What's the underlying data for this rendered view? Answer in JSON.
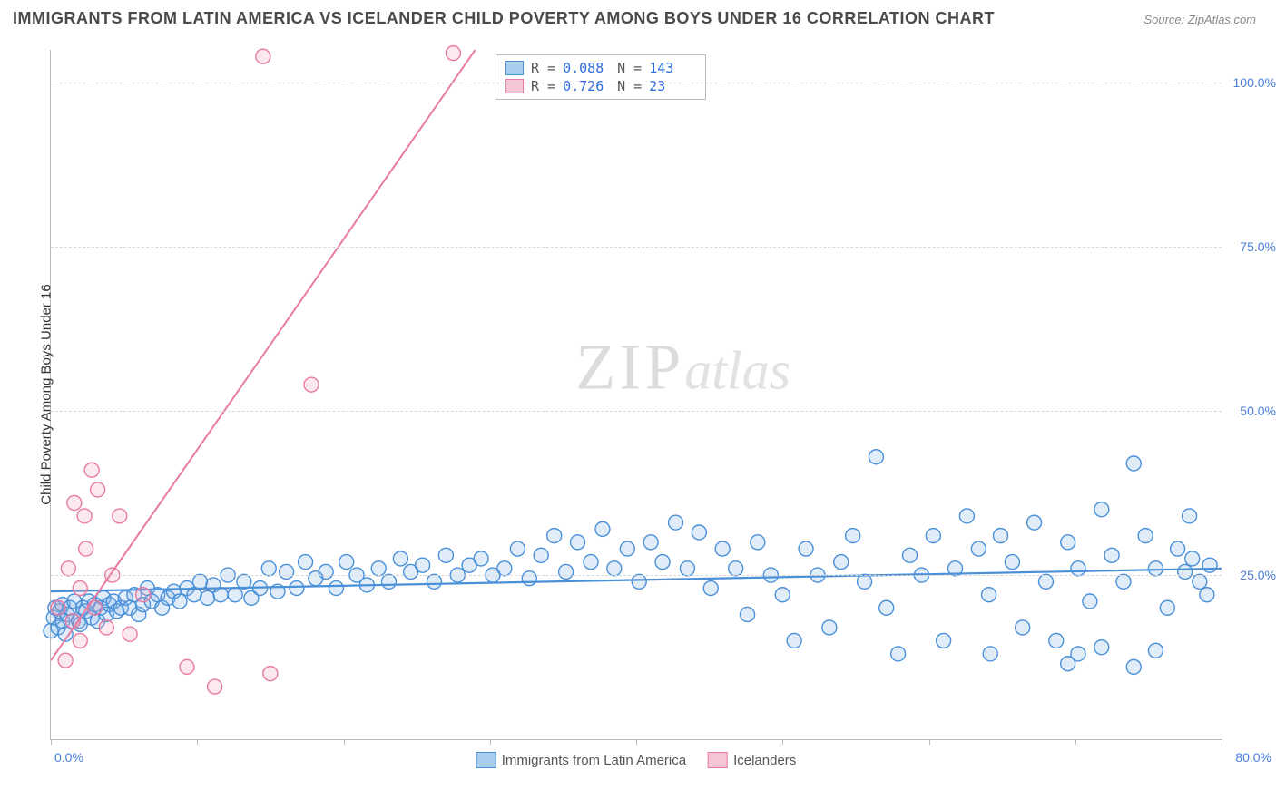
{
  "title": "IMMIGRANTS FROM LATIN AMERICA VS ICELANDER CHILD POVERTY AMONG BOYS UNDER 16 CORRELATION CHART",
  "source": "Source: ZipAtlas.com",
  "y_axis_label": "Child Poverty Among Boys Under 16",
  "watermark_a": "ZIP",
  "watermark_b": "atlas",
  "chart": {
    "type": "scatter",
    "xlim": [
      0,
      80
    ],
    "ylim": [
      0,
      105
    ],
    "x_tick_positions": [
      0,
      10,
      20,
      30,
      40,
      50,
      60,
      70,
      80
    ],
    "y_ticks": [
      {
        "v": 25,
        "label": "25.0%"
      },
      {
        "v": 50,
        "label": "50.0%"
      },
      {
        "v": 75,
        "label": "75.0%"
      },
      {
        "v": 100,
        "label": "100.0%"
      }
    ],
    "x_label_min": "0.0%",
    "x_label_max": "80.0%",
    "background_color": "#ffffff",
    "grid_color": "#d8d8d8",
    "marker_radius": 8,
    "marker_fill_opacity": 0.24,
    "marker_stroke_width": 1.4,
    "series": [
      {
        "id": "latin",
        "label": "Immigrants from Latin America",
        "color_stroke": "#4a90d9",
        "color_fill": "#7fb5e8",
        "R": "0.088",
        "N": "143",
        "trend": {
          "x1": 0,
          "y1": 22.5,
          "x2": 80,
          "y2": 26.0,
          "width": 2.2
        },
        "points": [
          [
            0.0,
            16.5
          ],
          [
            0.2,
            18.5
          ],
          [
            0.3,
            20.0
          ],
          [
            0.5,
            17.0
          ],
          [
            0.6,
            19.5
          ],
          [
            0.8,
            18.0
          ],
          [
            0.8,
            20.5
          ],
          [
            1.0,
            16.0
          ],
          [
            1.1,
            19.0
          ],
          [
            1.3,
            20.0
          ],
          [
            1.5,
            18.0
          ],
          [
            1.6,
            21.0
          ],
          [
            1.9,
            18.0
          ],
          [
            2.0,
            17.5
          ],
          [
            2.2,
            20.0
          ],
          [
            2.4,
            19.5
          ],
          [
            2.6,
            21.0
          ],
          [
            2.8,
            18.5
          ],
          [
            3.0,
            20.5
          ],
          [
            3.2,
            18.0
          ],
          [
            3.4,
            20.0
          ],
          [
            3.6,
            21.5
          ],
          [
            3.8,
            19.0
          ],
          [
            4.0,
            20.5
          ],
          [
            4.3,
            21.0
          ],
          [
            4.5,
            19.5
          ],
          [
            4.8,
            20.0
          ],
          [
            5.1,
            21.5
          ],
          [
            5.4,
            20.0
          ],
          [
            5.7,
            22.0
          ],
          [
            6.0,
            19.0
          ],
          [
            6.3,
            20.5
          ],
          [
            6.6,
            23.0
          ],
          [
            6.9,
            21.0
          ],
          [
            7.3,
            22.0
          ],
          [
            7.6,
            20.0
          ],
          [
            8.0,
            21.5
          ],
          [
            8.4,
            22.5
          ],
          [
            8.8,
            21.0
          ],
          [
            9.3,
            23.0
          ],
          [
            9.8,
            22.0
          ],
          [
            10.2,
            24.0
          ],
          [
            10.7,
            21.5
          ],
          [
            11.1,
            23.5
          ],
          [
            11.6,
            22.0
          ],
          [
            12.1,
            25.0
          ],
          [
            12.6,
            22.0
          ],
          [
            13.2,
            24.0
          ],
          [
            13.7,
            21.5
          ],
          [
            14.3,
            23.0
          ],
          [
            14.9,
            26.0
          ],
          [
            15.5,
            22.5
          ],
          [
            16.1,
            25.5
          ],
          [
            16.8,
            23.0
          ],
          [
            17.4,
            27.0
          ],
          [
            18.1,
            24.5
          ],
          [
            18.8,
            25.5
          ],
          [
            19.5,
            23.0
          ],
          [
            20.2,
            27.0
          ],
          [
            20.9,
            25.0
          ],
          [
            21.6,
            23.5
          ],
          [
            22.4,
            26.0
          ],
          [
            23.1,
            24.0
          ],
          [
            23.9,
            27.5
          ],
          [
            24.6,
            25.5
          ],
          [
            25.4,
            26.5
          ],
          [
            26.2,
            24.0
          ],
          [
            27.0,
            28.0
          ],
          [
            27.8,
            25.0
          ],
          [
            28.6,
            26.5
          ],
          [
            29.4,
            27.5
          ],
          [
            30.2,
            25.0
          ],
          [
            31.0,
            26.0
          ],
          [
            31.9,
            29.0
          ],
          [
            32.7,
            24.5
          ],
          [
            33.5,
            28.0
          ],
          [
            34.4,
            31.0
          ],
          [
            35.2,
            25.5
          ],
          [
            36.0,
            30.0
          ],
          [
            36.9,
            27.0
          ],
          [
            37.7,
            32.0
          ],
          [
            38.5,
            26.0
          ],
          [
            39.4,
            29.0
          ],
          [
            40.2,
            24.0
          ],
          [
            41.0,
            30.0
          ],
          [
            41.8,
            27.0
          ],
          [
            42.7,
            33.0
          ],
          [
            43.5,
            26.0
          ],
          [
            44.3,
            31.5
          ],
          [
            45.1,
            23.0
          ],
          [
            45.9,
            29.0
          ],
          [
            46.8,
            26.0
          ],
          [
            47.6,
            19.0
          ],
          [
            48.3,
            30.0
          ],
          [
            49.2,
            25.0
          ],
          [
            50.0,
            22.0
          ],
          [
            50.8,
            15.0
          ],
          [
            51.6,
            29.0
          ],
          [
            52.4,
            25.0
          ],
          [
            53.2,
            17.0
          ],
          [
            54.0,
            27.0
          ],
          [
            54.8,
            31.0
          ],
          [
            55.6,
            24.0
          ],
          [
            56.4,
            43.0
          ],
          [
            57.1,
            20.0
          ],
          [
            57.9,
            13.0
          ],
          [
            58.7,
            28.0
          ],
          [
            59.5,
            25.0
          ],
          [
            60.3,
            31.0
          ],
          [
            61.0,
            15.0
          ],
          [
            61.8,
            26.0
          ],
          [
            62.6,
            34.0
          ],
          [
            63.4,
            29.0
          ],
          [
            64.1,
            22.0
          ],
          [
            64.2,
            13.0
          ],
          [
            64.9,
            31.0
          ],
          [
            65.7,
            27.0
          ],
          [
            66.4,
            17.0
          ],
          [
            67.2,
            33.0
          ],
          [
            68.0,
            24.0
          ],
          [
            68.7,
            15.0
          ],
          [
            69.5,
            30.0
          ],
          [
            69.5,
            11.5
          ],
          [
            70.2,
            26.0
          ],
          [
            70.2,
            13.0
          ],
          [
            71.0,
            21.0
          ],
          [
            71.8,
            35.0
          ],
          [
            71.8,
            14.0
          ],
          [
            72.5,
            28.0
          ],
          [
            73.3,
            24.0
          ],
          [
            74.0,
            42.0
          ],
          [
            74.0,
            11.0
          ],
          [
            74.8,
            31.0
          ],
          [
            75.5,
            26.0
          ],
          [
            75.5,
            13.5
          ],
          [
            76.3,
            20.0
          ],
          [
            77.0,
            29.0
          ],
          [
            77.5,
            25.5
          ],
          [
            77.8,
            34.0
          ],
          [
            78.0,
            27.5
          ],
          [
            78.5,
            24.0
          ],
          [
            79.0,
            22.0
          ],
          [
            79.2,
            26.5
          ]
        ]
      },
      {
        "id": "icelanders",
        "label": "Icelanders",
        "color_stroke": "#e87ba2",
        "color_fill": "#f3a3bd",
        "R": "0.726",
        "N": "23",
        "trend": {
          "x1": 0,
          "y1": 12.0,
          "x2": 29,
          "y2": 105.0,
          "width": 2.0
        },
        "points": [
          [
            0.5,
            20.0
          ],
          [
            1.0,
            12.0
          ],
          [
            1.2,
            26.0
          ],
          [
            1.5,
            18.0
          ],
          [
            1.6,
            36.0
          ],
          [
            2.0,
            15.0
          ],
          [
            2.0,
            23.0
          ],
          [
            2.3,
            34.0
          ],
          [
            2.4,
            29.0
          ],
          [
            2.8,
            41.0
          ],
          [
            3.0,
            20.0
          ],
          [
            3.2,
            38.0
          ],
          [
            3.8,
            17.0
          ],
          [
            4.2,
            25.0
          ],
          [
            4.7,
            34.0
          ],
          [
            5.4,
            16.0
          ],
          [
            6.3,
            22.0
          ],
          [
            9.3,
            11.0
          ],
          [
            11.2,
            8.0
          ],
          [
            15.0,
            10.0
          ],
          [
            17.8,
            54.0
          ],
          [
            14.5,
            104.0
          ],
          [
            27.5,
            104.5
          ]
        ]
      }
    ]
  },
  "stats_box": {
    "rows": [
      {
        "swatch_fill": "#a9cdef",
        "swatch_stroke": "#4a90d9",
        "r_label": "R =",
        "r_val": "0.088",
        "n_label": "N =",
        "n_val": "143"
      },
      {
        "swatch_fill": "#f7c6d6",
        "swatch_stroke": "#e87ba2",
        "r_label": "R =",
        "r_val": "0.726",
        "n_label": "N =",
        "n_val": " 23"
      }
    ]
  },
  "legend": {
    "items": [
      {
        "fill": "#a9cdef",
        "stroke": "#4a90d9",
        "label": "Immigrants from Latin America"
      },
      {
        "fill": "#f7c6d6",
        "stroke": "#e87ba2",
        "label": "Icelanders"
      }
    ]
  }
}
